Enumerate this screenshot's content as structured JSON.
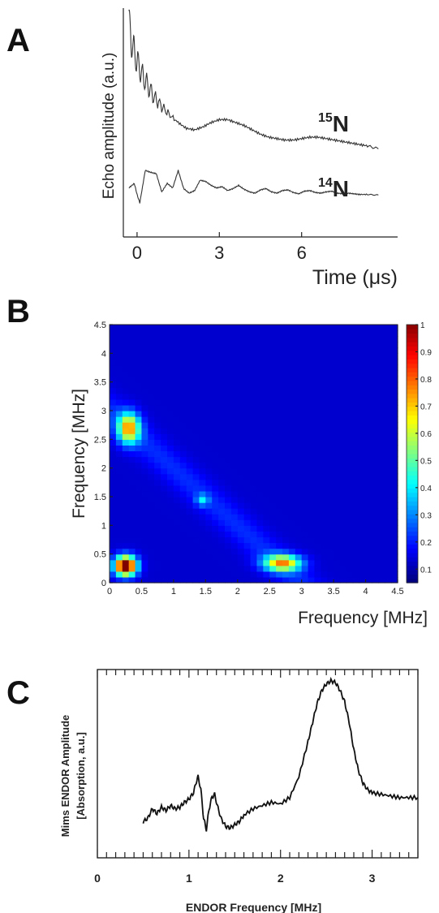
{
  "panels": [
    {
      "letter": "A"
    },
    {
      "letter": "B"
    },
    {
      "letter": "C"
    }
  ],
  "chart_data": [
    {
      "type": "line",
      "panel": "A",
      "xlabel": "Time (μs)",
      "ylabel": "Echo amplitude (a.u.)",
      "xticks": [
        "0",
        "3",
        "6"
      ],
      "xlim": [
        -0.5,
        9.5
      ],
      "series": [
        {
          "name": "¹⁵N",
          "label_main": "N",
          "label_sup": "15",
          "x": [
            -0.3,
            -0.2,
            -0.1,
            0,
            0.2,
            0.4,
            0.6,
            0.9,
            1.2,
            1.5,
            1.8,
            2.1,
            2.4,
            2.7,
            3.0,
            3.3,
            3.6,
            3.9,
            4.2,
            4.5,
            4.8,
            5.1,
            5.4,
            5.7,
            6.0,
            6.3,
            6.6,
            6.9,
            7.2,
            7.5,
            7.8,
            8.1,
            8.4,
            8.8
          ],
          "y": [
            1.0,
            0.85,
            0.78,
            0.72,
            0.62,
            0.55,
            0.48,
            0.41,
            0.35,
            0.3,
            0.26,
            0.25,
            0.27,
            0.3,
            0.32,
            0.32,
            0.3,
            0.28,
            0.25,
            0.22,
            0.2,
            0.19,
            0.18,
            0.18,
            0.19,
            0.2,
            0.2,
            0.19,
            0.18,
            0.17,
            0.16,
            0.15,
            0.14,
            0.12
          ]
        },
        {
          "name": "¹⁴N",
          "label_main": "N",
          "label_sup": "14",
          "x": [
            -0.3,
            -0.1,
            0,
            0.1,
            0.3,
            0.5,
            0.7,
            0.9,
            1.1,
            1.3,
            1.5,
            1.7,
            1.9,
            2.1,
            2.3,
            2.5,
            2.7,
            2.9,
            3.1,
            3.3,
            3.5,
            3.7,
            3.9,
            4.1,
            4.3,
            4.5,
            4.7,
            4.9,
            5.1,
            5.3,
            5.5,
            5.7,
            5.9,
            6.1,
            6.3,
            6.5,
            6.7,
            6.9,
            7.1,
            7.3,
            7.5,
            7.7,
            7.9,
            8.1,
            8.4,
            8.8
          ],
          "y": [
            -0.62,
            -0.55,
            -0.72,
            -0.85,
            -0.35,
            -0.38,
            -0.4,
            -0.68,
            -0.55,
            -0.62,
            -0.35,
            -0.63,
            -0.7,
            -0.66,
            -0.5,
            -0.52,
            -0.58,
            -0.62,
            -0.6,
            -0.66,
            -0.63,
            -0.58,
            -0.64,
            -0.68,
            -0.7,
            -0.65,
            -0.63,
            -0.68,
            -0.7,
            -0.66,
            -0.65,
            -0.69,
            -0.71,
            -0.67,
            -0.66,
            -0.69,
            -0.7,
            -0.68,
            -0.67,
            -0.7,
            -0.71,
            -0.7,
            -0.71,
            -0.72,
            -0.72,
            -0.73
          ]
        }
      ]
    },
    {
      "type": "heatmap",
      "panel": "B",
      "xlabel": "Frequency [MHz]",
      "ylabel": "Frequency [MHz]",
      "xlim": [
        0,
        4.5
      ],
      "ylim": [
        0,
        4.5
      ],
      "xticks": [
        "0",
        "0.5",
        "1",
        "1.5",
        "2",
        "2.5",
        "3",
        "3.5",
        "4",
        "4.5"
      ],
      "yticks": [
        "0",
        "0.5",
        "1",
        "1.5",
        "2",
        "2.5",
        "3",
        "3.5",
        "4",
        "4.5"
      ],
      "colorbar_ticks": [
        "0.1",
        "0.2",
        "0.3",
        "0.4",
        "0.5",
        "0.6",
        "0.7",
        "0.8",
        "0.9",
        "1"
      ],
      "colorbar_range": [
        0.05,
        1.0
      ],
      "background_level": 0.12,
      "peaks": [
        {
          "x": 0.25,
          "y": 0.3,
          "amp": 0.92,
          "sx": 0.12,
          "sy": 0.12
        },
        {
          "x": 0.3,
          "y": 2.7,
          "amp": 0.55,
          "sx": 0.12,
          "sy": 0.18
        },
        {
          "x": 2.7,
          "y": 0.35,
          "amp": 0.55,
          "sx": 0.2,
          "sy": 0.1
        },
        {
          "x": 1.45,
          "y": 1.45,
          "amp": 0.2,
          "sx": 0.07,
          "sy": 0.07
        }
      ],
      "antidiagonal_ridge": {
        "sum": 3.0,
        "amp": 0.08,
        "width": 0.25
      }
    },
    {
      "type": "line",
      "panel": "C",
      "xlabel": "ENDOR Frequency [MHz]",
      "ylabel_line1": "Mims ENDOR Amplitude",
      "ylabel_line2": "[Absorption, a.u.]",
      "xlim": [
        0,
        3.5
      ],
      "xticks": [
        "0",
        "1",
        "2",
        "3"
      ],
      "ylim": [
        0,
        1.0
      ],
      "series": [
        {
          "name": "ENDOR",
          "x": [
            0.5,
            0.55,
            0.6,
            0.65,
            0.7,
            0.75,
            0.8,
            0.85,
            0.9,
            0.95,
            1.0,
            1.05,
            1.08,
            1.1,
            1.13,
            1.16,
            1.19,
            1.22,
            1.25,
            1.28,
            1.31,
            1.35,
            1.4,
            1.45,
            1.5,
            1.55,
            1.6,
            1.7,
            1.8,
            1.9,
            2.0,
            2.1,
            2.2,
            2.3,
            2.35,
            2.4,
            2.45,
            2.5,
            2.55,
            2.6,
            2.65,
            2.7,
            2.75,
            2.8,
            2.85,
            2.9,
            2.95,
            3.0,
            3.1,
            3.2,
            3.3,
            3.4,
            3.5
          ],
          "y": [
            0.1,
            0.12,
            0.18,
            0.15,
            0.19,
            0.17,
            0.2,
            0.18,
            0.19,
            0.22,
            0.24,
            0.28,
            0.35,
            0.38,
            0.3,
            0.12,
            0.05,
            0.18,
            0.25,
            0.27,
            0.2,
            0.12,
            0.07,
            0.06,
            0.08,
            0.1,
            0.14,
            0.18,
            0.2,
            0.22,
            0.21,
            0.25,
            0.38,
            0.6,
            0.72,
            0.84,
            0.92,
            0.96,
            0.98,
            0.97,
            0.92,
            0.85,
            0.72,
            0.55,
            0.42,
            0.34,
            0.3,
            0.28,
            0.27,
            0.26,
            0.25,
            0.25,
            0.25
          ]
        }
      ]
    }
  ]
}
